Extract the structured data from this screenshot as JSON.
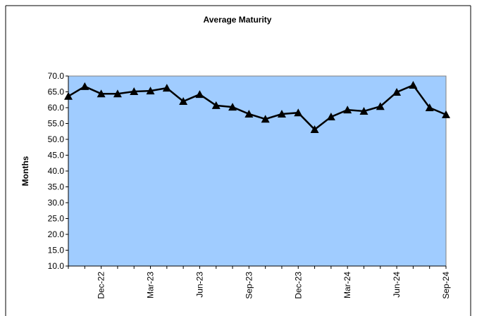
{
  "chart_data": {
    "type": "line",
    "title": "Average Maturity",
    "y_label": "Months",
    "categories": [
      null,
      null,
      "Dec-22",
      null,
      null,
      "Mar-23",
      null,
      null,
      "Jun-23",
      null,
      null,
      "Sep-23",
      null,
      null,
      "Dec-23",
      null,
      null,
      "Mar-24",
      null,
      null,
      "Jun-24",
      null,
      null,
      "Sep-24"
    ],
    "series": [
      {
        "name": "Average Maturity",
        "color": "#000000",
        "values": [
          63.6,
          66.7,
          64.4,
          64.4,
          65.1,
          65.3,
          66.2,
          62.0,
          64.2,
          60.7,
          60.2,
          58.0,
          56.4,
          58.0,
          58.4,
          53.1,
          57.1,
          59.3,
          58.9,
          60.4,
          64.9,
          67.1,
          60.0,
          57.8
        ]
      }
    ],
    "ylim": [
      10,
      70
    ],
    "yticks": [
      {
        "value": 10,
        "label": "10.0"
      },
      {
        "value": 15,
        "label": "15.0"
      },
      {
        "value": 20,
        "label": "20.0"
      },
      {
        "value": 25,
        "label": "25.0"
      },
      {
        "value": 30,
        "label": "30.0"
      },
      {
        "value": 35,
        "label": "35.0"
      },
      {
        "value": 40,
        "label": "40.0"
      },
      {
        "value": 45,
        "label": "45.0"
      },
      {
        "value": 50,
        "label": "50.0"
      },
      {
        "value": 55,
        "label": "55.0"
      },
      {
        "value": 60,
        "label": "60.0"
      },
      {
        "value": 65,
        "label": "65.0"
      },
      {
        "value": 70,
        "label": "70.0"
      }
    ],
    "plot_background": "#a0ccff",
    "marker": "triangle"
  }
}
